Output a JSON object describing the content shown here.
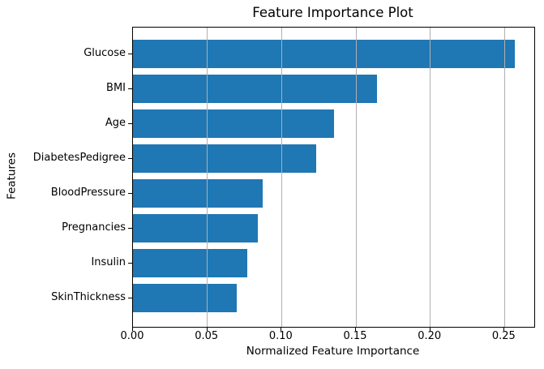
{
  "chart_data": {
    "type": "bar",
    "orientation": "horizontal",
    "title": "Feature Importance Plot",
    "xlabel": "Normalized Feature Importance",
    "ylabel": "Features",
    "categories": [
      "Glucose",
      "BMI",
      "Age",
      "DiabetesPedigree",
      "BloodPressure",
      "Pregnancies",
      "Insulin",
      "SkinThickness"
    ],
    "values": [
      0.257,
      0.164,
      0.135,
      0.123,
      0.087,
      0.084,
      0.077,
      0.07
    ],
    "xlim": [
      0,
      0.27
    ],
    "xticks": [
      0,
      0.05,
      0.1,
      0.15,
      0.2,
      0.25
    ],
    "xtick_labels": [
      "0.00",
      "0.05",
      "0.10",
      "0.15",
      "0.20",
      "0.25"
    ],
    "grid": true,
    "grid_axis": "x",
    "legend": false,
    "bar_color": "#1f77b4",
    "grid_color": "#b0b0b0",
    "spine_color": "#000000"
  }
}
